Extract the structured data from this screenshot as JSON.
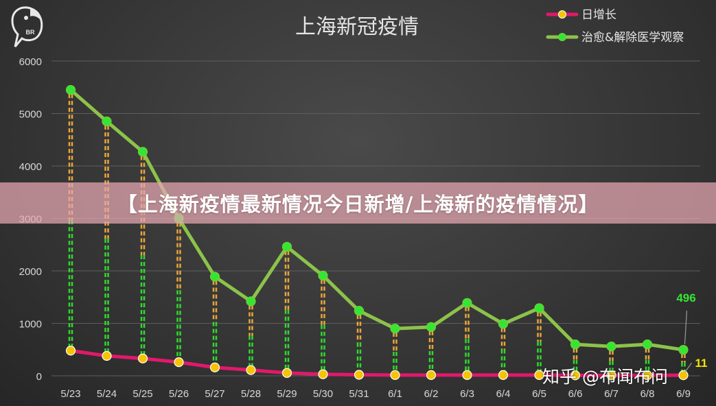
{
  "chart_data": {
    "type": "line",
    "title": "上海新冠疫情",
    "categories": [
      "5/23",
      "5/24",
      "5/25",
      "5/26",
      "5/27",
      "5/28",
      "5/29",
      "5/30",
      "5/31",
      "6/1",
      "6/2",
      "6/3",
      "6/4",
      "6/5",
      "6/6",
      "6/7",
      "6/8",
      "6/9"
    ],
    "ylim": [
      0,
      6000
    ],
    "yticks": [
      0,
      1000,
      2000,
      3000,
      4000,
      5000,
      6000
    ],
    "grid": true,
    "legend": "top-right",
    "series": [
      {
        "name": "日增长",
        "color": "#e0196b",
        "marker": "#f5c400",
        "values": [
          480,
          380,
          330,
          260,
          160,
          110,
          55,
          30,
          20,
          15,
          15,
          15,
          15,
          15,
          10,
          10,
          10,
          11
        ]
      },
      {
        "name": "治愈&解除医学观察",
        "color": "#8cc34a",
        "marker": "#33e633",
        "values": [
          5450,
          4850,
          4270,
          3000,
          1890,
          1420,
          2460,
          1910,
          1240,
          900,
          930,
          1390,
          990,
          1290,
          600,
          560,
          600,
          496
        ]
      }
    ],
    "annotations": [
      {
        "text": "496",
        "series": 1,
        "index": 17,
        "color": "#35e635"
      },
      {
        "text": "11",
        "series": 0,
        "index": 17,
        "color": "#f5e400"
      }
    ]
  },
  "logo": {
    "text": "BR"
  },
  "banner": {
    "text": "【上海新疫情最新情况今日新增/上海新的疫情情况】"
  },
  "watermark": {
    "text": "知乎 @布闻布问"
  }
}
